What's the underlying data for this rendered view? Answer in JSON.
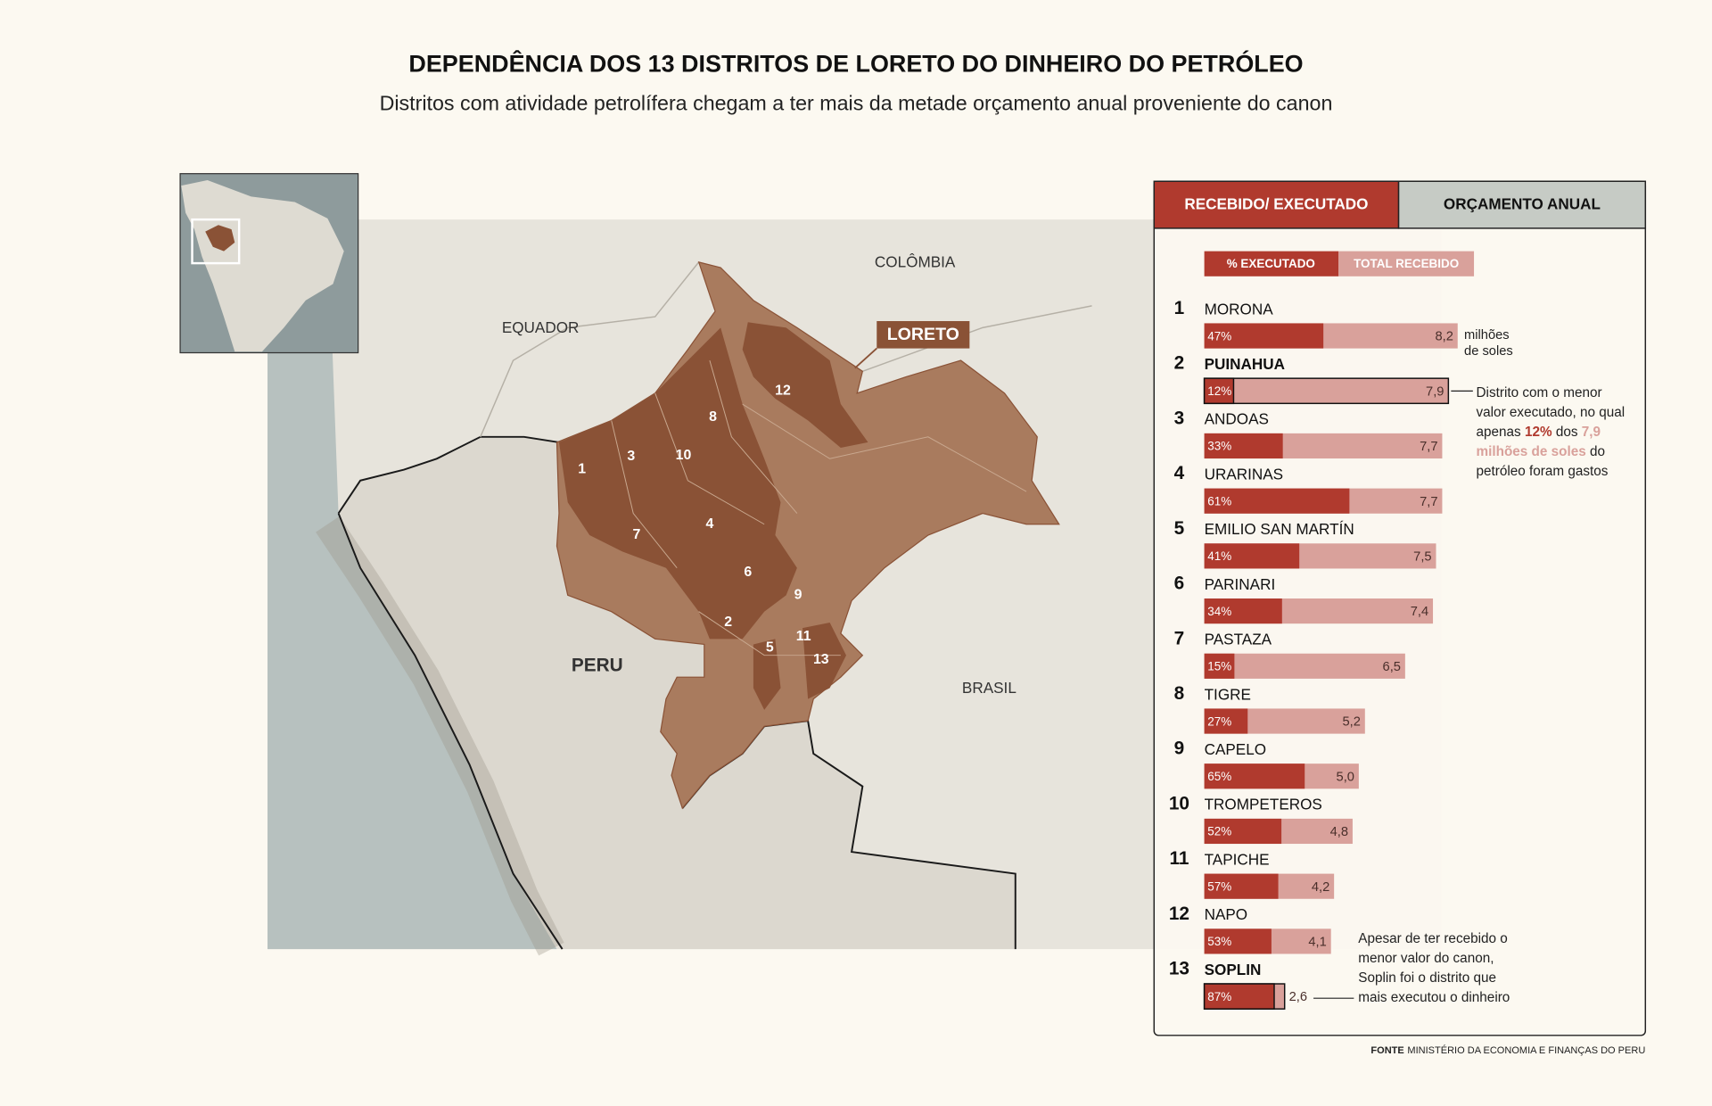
{
  "header": {
    "title": "DEPENDÊNCIA DOS 13 DISTRITOS DE LORETO DO DINHEIRO DO PETRÓLEO",
    "subtitle": "Distritos com atividade petrolífera chegam a ter mais da metade orçamento anual proveniente do canon"
  },
  "map": {
    "labels": [
      "COLÔMBIA",
      "EQUADOR",
      "PERU",
      "BRASIL"
    ],
    "region": "LORETO"
  },
  "chart_data": {
    "type": "bar",
    "orientation": "horizontal",
    "tabs": [
      "RECEBIDO/ EXECUTADO",
      "ORÇAMENTO ANUAL"
    ],
    "ranks": [
      1,
      2,
      3,
      4,
      5,
      6,
      7,
      8,
      9,
      10,
      11,
      12,
      13
    ],
    "categories": [
      "MORONA",
      "PUINAHUA",
      "ANDOAS",
      "URARINAS",
      "EMILIO SAN MARTÍN",
      "PARINARI",
      "PASTAZA",
      "TIGRE",
      "CAPELO",
      "TROMPETEROS",
      "TAPICHE",
      "NAPO",
      "SOPLIN"
    ],
    "series": [
      {
        "name": "% EXECUTADO",
        "color": "#b03a2e",
        "values": [
          47,
          12,
          33,
          61,
          41,
          34,
          15,
          27,
          65,
          52,
          57,
          53,
          87
        ],
        "value_labels": [
          "47%",
          "12%",
          "33%",
          "61%",
          "41%",
          "34%",
          "15%",
          "27%",
          "65%",
          "52%",
          "57%",
          "53%",
          "87%"
        ]
      },
      {
        "name": "TOTAL RECEBIDO",
        "color": "#d9a19b",
        "values": [
          8.2,
          7.9,
          7.7,
          7.7,
          7.5,
          7.4,
          6.5,
          5.2,
          5.0,
          4.8,
          4.2,
          4.1,
          2.6
        ],
        "value_labels": [
          "8,2",
          "7,9",
          "7,7",
          "7,7",
          "7,5",
          "7,4",
          "6,5",
          "5,2",
          "5,0",
          "4,8",
          "4,2",
          "4,1",
          "2,6"
        ]
      }
    ],
    "unit_label": [
      "milhões",
      "de soles"
    ],
    "highlight": [
      1,
      12
    ],
    "annotations": [
      {
        "row": 1,
        "lines": [
          [
            {
              "text": "Distrito com o menor"
            }
          ],
          [
            {
              "text": "valor executado, no qual"
            }
          ],
          [
            {
              "text": "apenas "
            },
            {
              "text": "12%",
              "series": 0
            },
            {
              "text": " dos "
            },
            {
              "text": "7,9",
              "series": 1
            }
          ],
          [
            {
              "text": "milhões de soles",
              "series": 1
            },
            {
              "text": " do"
            }
          ],
          [
            {
              "text": "petróleo foram gastos"
            }
          ]
        ]
      },
      {
        "row": 12,
        "lines": [
          [
            {
              "text": "Apesar de ter recebido o"
            }
          ],
          [
            {
              "text": "menor valor do canon,"
            }
          ],
          [
            {
              "text": "Soplin foi o distrito que"
            }
          ],
          [
            {
              "text": "mais executou o dinheiro"
            }
          ]
        ]
      }
    ]
  },
  "source": {
    "label": "FONTE",
    "text": "MINISTÉRIO DA ECONOMIA E FINANÇAS DO PERU"
  }
}
